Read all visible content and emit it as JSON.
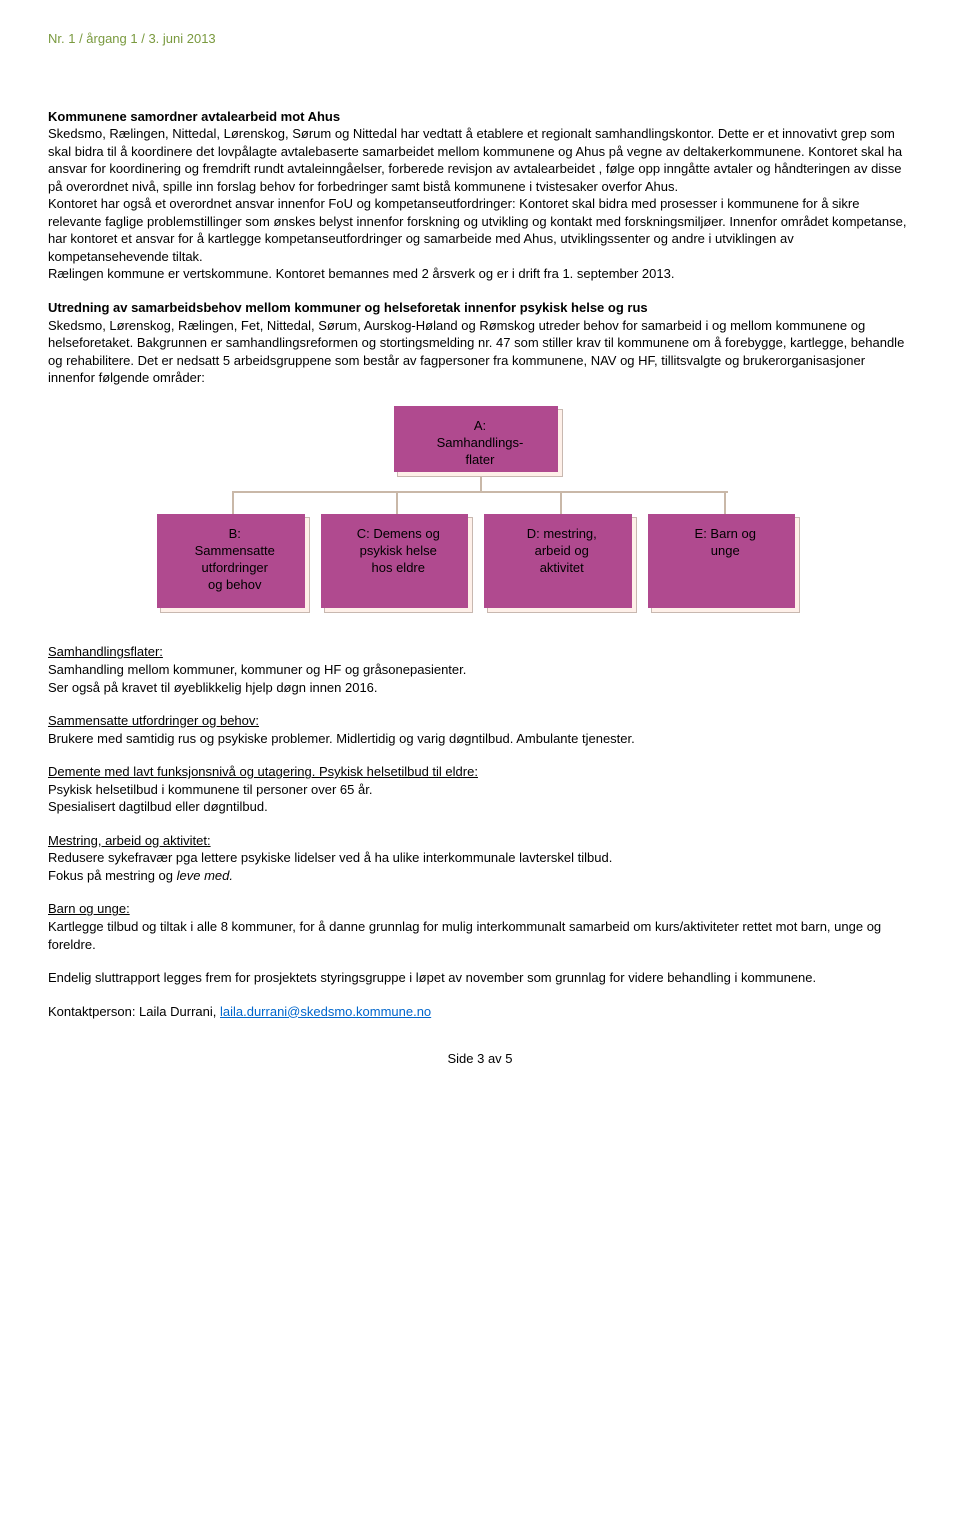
{
  "header": {
    "text": "Nr. 1 / årgang 1 / 3. juni 2013"
  },
  "s1": {
    "title": "Kommunene samordner avtalearbeid mot Ahus",
    "body": "Skedsmo, Rælingen, Nittedal, Lørenskog, Sørum og Nittedal har vedtatt å etablere et regionalt samhandlingskontor. Dette er et innovativt grep som skal bidra til å koordinere det lovpålagte avtalebaserte samarbeidet mellom kommunene og Ahus på vegne av deltakerkommunene. Kontoret skal ha ansvar for koordinering og fremdrift rundt avtaleinngåelser, forberede revisjon av avtalearbeidet , følge opp inngåtte avtaler og håndteringen av disse på overordnet nivå, spille inn forslag behov for forbedringer samt bistå kommunene i tvistesaker overfor Ahus.",
    "body2": "Kontoret har også et overordnet ansvar innenfor FoU og kompetanseutfordringer: Kontoret skal bidra med prosesser i kommunene for å sikre relevante faglige  problemstillinger som ønskes belyst innenfor forskning og utvikling og  kontakt med forskningsmiljøer. Innenfor området kompetanse, har kontoret et ansvar for å kartlegge kompetanseutfordringer og samarbeide med Ahus, utviklingssenter og andre i utviklingen av kompetansehevende tiltak.",
    "body3": "Rælingen kommune er vertskommune. Kontoret bemannes med 2 årsverk og er i drift fra 1. september 2013."
  },
  "s2": {
    "title": "Utredning av samarbeidsbehov mellom kommuner og helseforetak innenfor psykisk helse og rus",
    "body": "Skedsmo, Lørenskog, Rælingen, Fet, Nittedal, Sørum, Aurskog-Høland og Rømskog utreder behov for samarbeid i og mellom kommunene og helseforetaket. Bakgrunnen er samhandlingsreformen og stortingsmelding nr. 47 som stiller krav til kommunene om å forebygge, kartlegge, behandle og rehabilitere.  Det er nedsatt 5 arbeidsgruppene som består av fagpersoner fra kommunene, NAV og HF, tillitsvalgte og brukerorganisasjoner innenfor følgende områder:"
  },
  "diagram": {
    "type": "tree",
    "background_color": "#ffffff",
    "box_fill": "#fef0e9",
    "box_border": "#c8b8b0",
    "accent_color": "#b04a8f",
    "connector_color": "#c9b8a8",
    "fontsize": 13,
    "nodes": {
      "a": "A:\nSamhandlings-\nflater",
      "b": "B:\nSammensatte\nutfordringer\nog behov",
      "c": "C: Demens og\npsykisk helse\nhos eldre",
      "d": "D: mestring,\narbeid og\naktivitet",
      "e": "E: Barn og\nunge"
    }
  },
  "sub1": {
    "title": "Samhandlingsflater:",
    "l1": "Samhandling mellom kommuner, kommuner og HF og gråsonepasienter.",
    "l2": "Ser også på kravet til øyeblikkelig hjelp døgn innen 2016."
  },
  "sub2": {
    "title": "Sammensatte utfordringer og behov:",
    "l1": "Brukere med samtidig rus og psykiske problemer. Midlertidig og varig døgntilbud. Ambulante tjenester."
  },
  "sub3": {
    "title": "Demente med lavt funksjonsnivå og utagering. Psykisk helsetilbud til eldre:",
    "l1": "Psykisk helsetilbud i kommunene til personer over 65 år.",
    "l2": "Spesialisert dagtilbud eller døgntilbud."
  },
  "sub4": {
    "title": "Mestring, arbeid og aktivitet:",
    "l1": "Redusere sykefravær pga lettere psykiske lidelser ved å ha ulike interkommunale lavterskel tilbud.",
    "l2": "Fokus på mestring og leve med."
  },
  "sub5": {
    "title": "Barn og unge:",
    "l1": "Kartlegge tilbud og tiltak i alle 8 kommuner, for å danne grunnlag for mulig interkommunalt samarbeid om kurs/aktiviteter rettet mot barn, unge og foreldre."
  },
  "closing": {
    "text": "Endelig sluttrapport legges frem for prosjektets styringsgruppe i løpet av november som grunnlag for videre behandling i kommunene."
  },
  "contact": {
    "label": "Kontaktperson: Laila Durrani,  ",
    "email": "laila.durrani@skedsmo.kommune.no"
  },
  "footer": {
    "text": "Side 3 av 5"
  }
}
